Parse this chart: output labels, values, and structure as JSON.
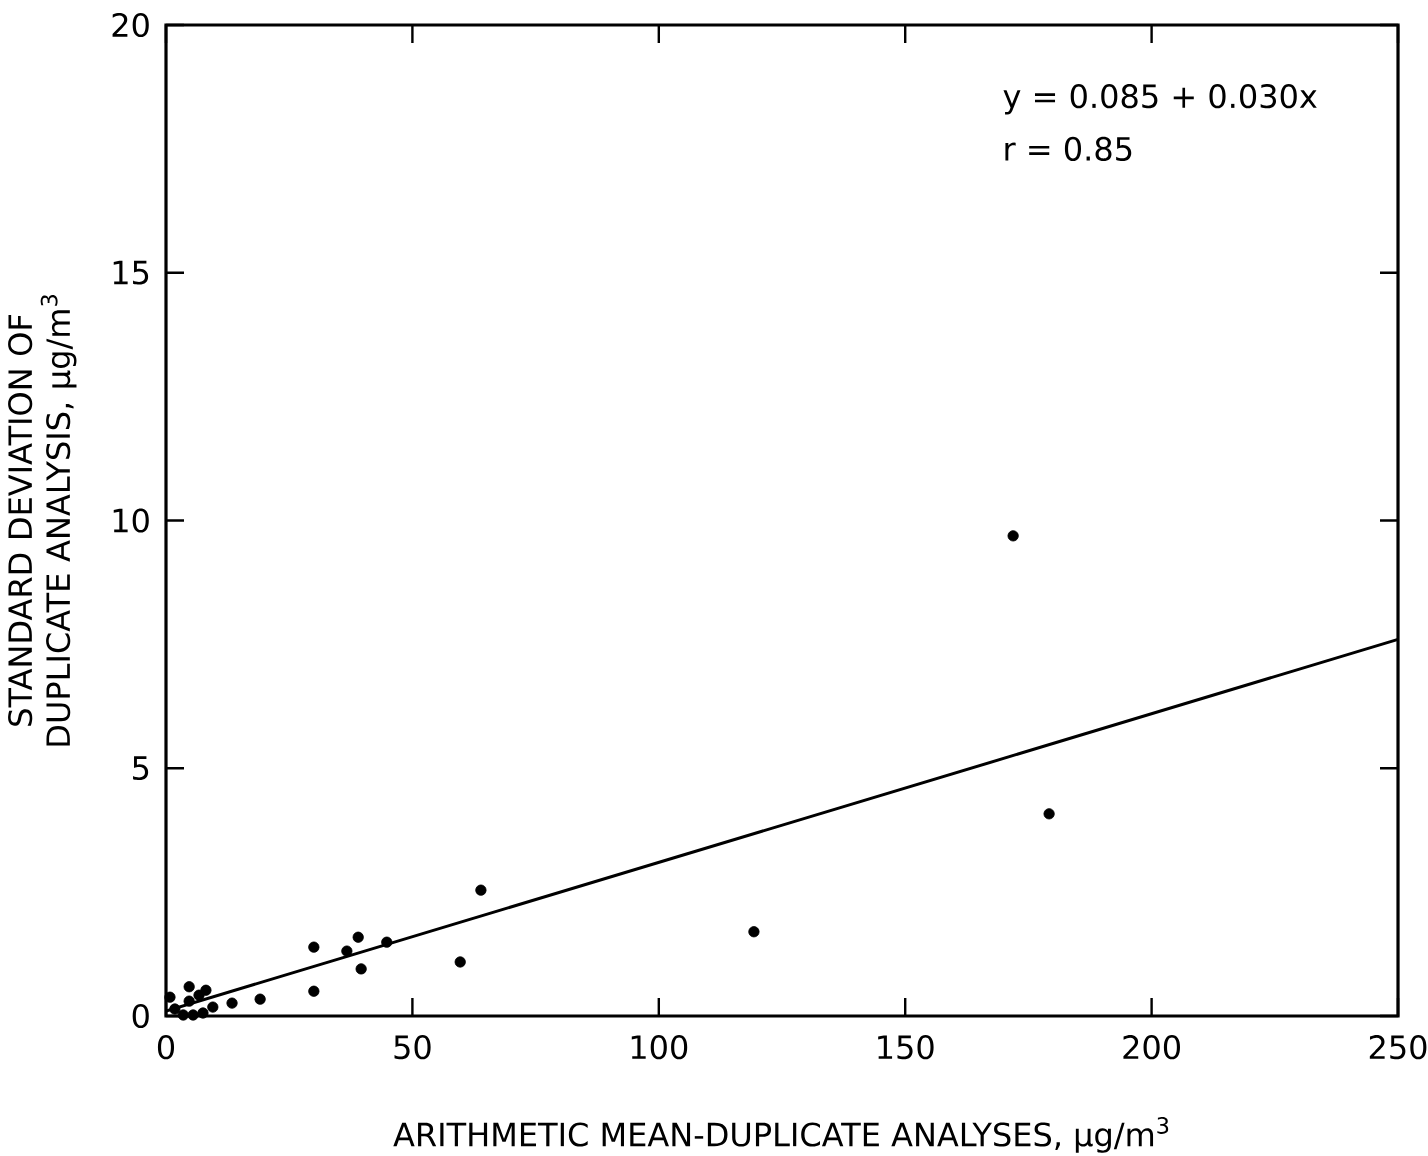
{
  "chart_data": {
    "type": "scatter",
    "xlabel": "ARITHMETIC MEAN-DUPLICATE ANALYSES, μg/m$^{3}$",
    "ylabel": "STANDARD DEVIATION OF DUPLICATE ANALYSIS, μg/m$^{3}$",
    "xlim": [
      0,
      250
    ],
    "ylim": [
      0,
      20
    ],
    "xticks": [
      0,
      50,
      100,
      150,
      200,
      250
    ],
    "yticks": [
      0,
      5,
      10,
      15,
      20
    ],
    "marker": "circle",
    "annotations": [
      "y = 0.085 + 0.030x",
      "r = 0.85"
    ],
    "series": [
      {
        "color": "#000000",
        "x": [
          0.8,
          1.8,
          3.5,
          4.7,
          4.7,
          5.5,
          6.7,
          7.5,
          8.1,
          9.5,
          13.4,
          19.1,
          30.0,
          30.0,
          36.7,
          39.0,
          39.6,
          44.8,
          59.7,
          63.9,
          119.3,
          171.9,
          179.2
        ],
        "values": [
          0.38,
          0.14,
          0.02,
          0.59,
          0.3,
          0.02,
          0.42,
          0.06,
          0.52,
          0.18,
          0.26,
          0.34,
          1.39,
          0.5,
          1.31,
          1.59,
          0.95,
          1.49,
          1.09,
          2.54,
          1.7,
          9.69,
          4.08
        ]
      },
      {
        "type": "line",
        "marker": "none",
        "color": "#000000",
        "x": [
          0,
          250
        ],
        "values": [
          0.1,
          7.6
        ]
      }
    ]
  }
}
